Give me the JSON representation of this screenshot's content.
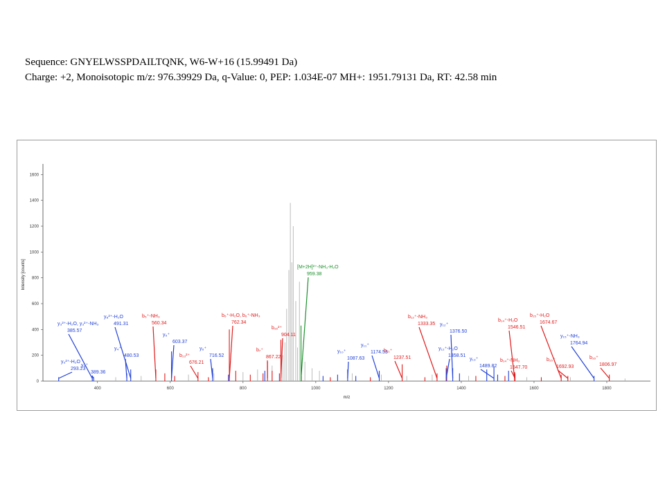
{
  "header": {
    "line1": "Sequence: GNYELWSSPDAILTQNK, W6-W+16 (15.99491 Da)",
    "line2": "Charge: +2, Monoisotopic m/z: 976.39929 Da, q-Value: 0, PEP: 1.034E-07 MH+: 1951.79131 Da, RT: 42.58 min"
  },
  "colors": {
    "b": "#e0191a",
    "y": "#1f3fd6",
    "precursor": "#1a8f2a",
    "unassigned": "#aaaaaa"
  },
  "chart_data": {
    "type": "bar",
    "xlabel": "m/z",
    "ylabel": "Intensity [counts]",
    "xlim": [
      250,
      1920
    ],
    "ylim": [
      0,
      1650
    ],
    "xticks": [
      400,
      600,
      800,
      1000,
      1200,
      1400,
      1600,
      1800
    ],
    "yticks": [
      0,
      200,
      400,
      600,
      800,
      1000,
      1200,
      1400,
      1600
    ],
    "series": [
      {
        "name": "b",
        "color": "#e0191a",
        "peaks": [
          [
            560.34,
            90
          ],
          [
            676.21,
            70
          ],
          [
            762.34,
            400
          ],
          [
            867.22,
            150
          ],
          [
            904.11,
            320
          ],
          [
            1237.51,
            130
          ],
          [
            1333.35,
            60
          ],
          [
            1546.51,
            70
          ],
          [
            1547.7,
            60
          ],
          [
            1674.67,
            50
          ],
          [
            1692.93,
            40
          ],
          [
            1806.97,
            50
          ],
          [
            585,
            60
          ],
          [
            612,
            40
          ],
          [
            705,
            30
          ],
          [
            780,
            80
          ],
          [
            820,
            50
          ],
          [
            855,
            60
          ],
          [
            880,
            80
          ],
          [
            960,
            40
          ],
          [
            1040,
            30
          ],
          [
            1150,
            30
          ],
          [
            1300,
            30
          ],
          [
            1360,
            120
          ],
          [
            1440,
            40
          ],
          [
            1520,
            40
          ],
          [
            1620,
            30
          ]
        ]
      },
      {
        "name": "y",
        "color": "#1f3fd6",
        "peaks": [
          [
            293.23,
            30
          ],
          [
            385.57,
            40
          ],
          [
            389.36,
            30
          ],
          [
            480.53,
            60
          ],
          [
            491.31,
            90
          ],
          [
            603.37,
            230
          ],
          [
            716.52,
            100
          ],
          [
            1087.63,
            90
          ],
          [
            1174.53,
            80
          ],
          [
            1358.51,
            100
          ],
          [
            1376.5,
            100
          ],
          [
            1489.82,
            110
          ],
          [
            1764.94,
            40
          ],
          [
            1020,
            40
          ],
          [
            1060,
            50
          ],
          [
            1110,
            40
          ],
          [
            1395,
            60
          ],
          [
            1470,
            90
          ],
          [
            1500,
            50
          ],
          [
            1530,
            80
          ],
          [
            760,
            50
          ],
          [
            860,
            80
          ],
          [
            900,
            60
          ]
        ]
      },
      {
        "name": "precursor",
        "color": "#1a8f2a",
        "peaks": [
          [
            959.38,
            430
          ]
        ]
      },
      {
        "name": "unassigned",
        "color": "#aaaaaa",
        "peaks": [
          [
            930,
            1380
          ],
          [
            938,
            1200
          ],
          [
            926,
            860
          ],
          [
            934,
            920
          ],
          [
            955,
            770
          ],
          [
            945,
            620
          ],
          [
            920,
            560
          ],
          [
            915,
            300
          ],
          [
            950,
            260
          ],
          [
            910,
            200
          ],
          [
            970,
            150
          ],
          [
            990,
            100
          ],
          [
            1010,
            80
          ],
          [
            880,
            120
          ],
          [
            840,
            90
          ],
          [
            800,
            70
          ],
          [
            720,
            60
          ],
          [
            650,
            50
          ],
          [
            520,
            40
          ],
          [
            450,
            30
          ],
          [
            1100,
            60
          ],
          [
            1180,
            50
          ],
          [
            1250,
            40
          ],
          [
            1320,
            50
          ],
          [
            1420,
            40
          ],
          [
            1580,
            30
          ],
          [
            1700,
            30
          ],
          [
            1850,
            20
          ]
        ]
      }
    ],
    "annotations": [
      {
        "text": "y₃²⁺-H₂O, y₃²⁺-NH₃",
        "value": "385.57",
        "color": "#1f3fd6",
        "peak": 385.57
      },
      {
        "text": "y₃²⁺-H₂O",
        "value": "293.23",
        "color": "#1f3fd6",
        "peak": 293.23
      },
      {
        "text": "y₃⁺",
        "value": "389.36",
        "color": "#1f3fd6",
        "peak": 389.36
      },
      {
        "text": "y₈²⁺-H₂O",
        "value": "491.31",
        "color": "#1f3fd6",
        "peak": 491.31
      },
      {
        "text": "y₄⁺",
        "value": "480.53",
        "color": "#1f3fd6",
        "peak": 480.53
      },
      {
        "text": "b₅⁺-NH₃",
        "value": "560.34",
        "color": "#e0191a",
        "peak": 560.34
      },
      {
        "text": "y₅⁺",
        "value": "603.37",
        "color": "#1f3fd6",
        "peak": 603.37
      },
      {
        "text": "b₁₃²⁺",
        "value": "676.21",
        "color": "#e0191a",
        "peak": 676.21
      },
      {
        "text": "y₆⁺",
        "value": "716.52",
        "color": "#1f3fd6",
        "peak": 716.52
      },
      {
        "text": "b₆⁺-H₂O, b₆⁺-NH₃",
        "value": "762.34",
        "color": "#e0191a",
        "peak": 762.34
      },
      {
        "text": "b₇⁺",
        "value": "867.22",
        "color": "#e0191a",
        "peak": 867.22
      },
      {
        "text": "b₁₆²⁺",
        "value": "904.11",
        "color": "#e0191a",
        "peak": 904.11
      },
      {
        "text": "[M+2H]²⁺-NH₃-H₂O",
        "value": "959.38",
        "color": "#1a8f2a",
        "peak": 959.38
      },
      {
        "text": "y₁₀⁺",
        "value": "1087.63",
        "color": "#1f3fd6",
        "peak": 1087.63
      },
      {
        "text": "y₁₁⁺",
        "value": "1174.53",
        "color": "#1f3fd6",
        "peak": 1174.53
      },
      {
        "text": "b₁₁⁺",
        "value": "1237.51",
        "color": "#e0191a",
        "peak": 1237.51
      },
      {
        "text": "b₁₂⁺-NH₃",
        "value": "1333.35",
        "color": "#e0191a",
        "peak": 1333.35
      },
      {
        "text": "y₁₂⁺",
        "value": "1376.50",
        "color": "#1f3fd6",
        "peak": 1376.5
      },
      {
        "text": "y₁₂⁺-H₂O",
        "value": "1358.51",
        "color": "#1f3fd6",
        "peak": 1358.51
      },
      {
        "text": "y₁₃⁺",
        "value": "1489.82",
        "color": "#1f3fd6",
        "peak": 1489.82
      },
      {
        "text": "b₁₄⁺-H₂O",
        "value": "1546.51",
        "color": "#e0191a",
        "peak": 1546.51
      },
      {
        "text": "b₁₄⁺-NH₃",
        "value": "1547.70",
        "color": "#e0191a",
        "peak": 1547.7
      },
      {
        "text": "b₁₅⁺-H₂O",
        "value": "1674.67",
        "color": "#e0191a",
        "peak": 1674.67
      },
      {
        "text": "b₁₅⁺",
        "value": "1692.93",
        "color": "#e0191a",
        "peak": 1692.93
      },
      {
        "text": "y₁₅⁺-NH₃",
        "value": "1764.94",
        "color": "#1f3fd6",
        "peak": 1764.94
      },
      {
        "text": "b₁₆⁺",
        "value": "1806.97",
        "color": "#e0191a",
        "peak": 1806.97
      }
    ]
  }
}
